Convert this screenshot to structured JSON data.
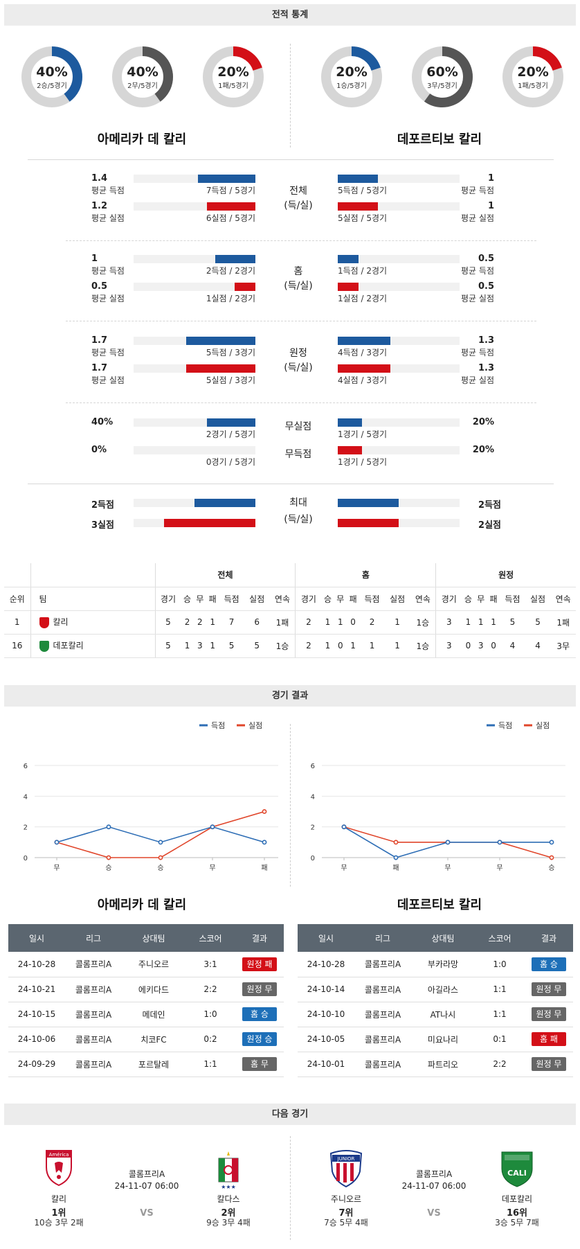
{
  "sections": {
    "stats_title": "전적 통계",
    "results_title": "경기 결과",
    "next_title": "다음 경기"
  },
  "donuts": [
    {
      "pct": "40%",
      "sub": "2승/5경기",
      "value": 0.4,
      "color": "#1d5a9e"
    },
    {
      "pct": "40%",
      "sub": "2무/5경기",
      "value": 0.4,
      "color": "#555555"
    },
    {
      "pct": "20%",
      "sub": "1패/5경기",
      "value": 0.2,
      "color": "#d30f17"
    },
    {
      "pct": "20%",
      "sub": "1승/5경기",
      "value": 0.2,
      "color": "#1d5a9e"
    },
    {
      "pct": "60%",
      "sub": "3무/5경기",
      "value": 0.6,
      "color": "#555555"
    },
    {
      "pct": "20%",
      "sub": "1패/5경기",
      "value": 0.2,
      "color": "#d30f17"
    }
  ],
  "teams": {
    "home": "아메리카 데 칼리",
    "away": "데포르티보 칼리"
  },
  "stat_groups": [
    {
      "label1": "전체",
      "label2": "(득/실)",
      "rows": [
        {
          "lv": "1.4",
          "ll": "평균 득점",
          "lsub": "7득점 / 5경기",
          "lfrac": 0.47,
          "rv": "1",
          "rl": "평균 득점",
          "rsub": "5득점 / 5경기",
          "rfrac": 0.33,
          "color": "blue"
        },
        {
          "lv": "1.2",
          "ll": "평균 실점",
          "lsub": "6실점 / 5경기",
          "lfrac": 0.4,
          "rv": "1",
          "rl": "평균 실점",
          "rsub": "5실점 / 5경기",
          "rfrac": 0.33,
          "color": "red"
        }
      ]
    },
    {
      "label1": "홈",
      "label2": "(득/실)",
      "rows": [
        {
          "lv": "1",
          "ll": "평균 득점",
          "lsub": "2득점 / 2경기",
          "lfrac": 0.33,
          "rv": "0.5",
          "rl": "평균 득점",
          "rsub": "1득점 / 2경기",
          "rfrac": 0.17,
          "color": "blue"
        },
        {
          "lv": "0.5",
          "ll": "평균 실점",
          "lsub": "1실점 / 2경기",
          "lfrac": 0.17,
          "rv": "0.5",
          "rl": "평균 실점",
          "rsub": "1실점 / 2경기",
          "rfrac": 0.17,
          "color": "red"
        }
      ]
    },
    {
      "label1": "원정",
      "label2": "(득/실)",
      "rows": [
        {
          "lv": "1.7",
          "ll": "평균 득점",
          "lsub": "5득점 / 3경기",
          "lfrac": 0.57,
          "rv": "1.3",
          "rl": "평균 득점",
          "rsub": "4득점 / 3경기",
          "rfrac": 0.43,
          "color": "blue"
        },
        {
          "lv": "1.7",
          "ll": "평균 실점",
          "lsub": "5실점 / 3경기",
          "lfrac": 0.57,
          "rv": "1.3",
          "rl": "평균 실점",
          "rsub": "4실점 / 3경기",
          "rfrac": 0.43,
          "color": "red"
        }
      ]
    }
  ],
  "clean": {
    "label_a": "무실점",
    "label_b": "무득점",
    "rows": [
      {
        "lv": "40%",
        "lsub": "2경기 / 5경기",
        "lfrac": 0.4,
        "rv": "20%",
        "rsub": "1경기 / 5경기",
        "rfrac": 0.2,
        "color": "blue"
      },
      {
        "lv": "0%",
        "lsub": "0경기 / 5경기",
        "lfrac": 0.0,
        "rv": "20%",
        "rsub": "1경기 / 5경기",
        "rfrac": 0.2,
        "color": "red"
      }
    ]
  },
  "max": {
    "label1": "최대",
    "label2": "(득/실)",
    "rows": [
      {
        "lv": "2득점",
        "lfrac": 0.5,
        "rv": "2득점",
        "rfrac": 0.5,
        "color": "blue"
      },
      {
        "lv": "3실점",
        "lfrac": 0.75,
        "rv": "2실점",
        "rfrac": 0.5,
        "color": "red"
      }
    ]
  },
  "standings": {
    "groups": [
      "전체",
      "홈",
      "원정"
    ],
    "rank_header": "순위",
    "team_header": "팀",
    "sub_headers": [
      "경기",
      "승",
      "무",
      "패",
      "득점",
      "실점",
      "연속"
    ],
    "rows": [
      {
        "rank": "1",
        "team": "칼리",
        "crest_color": "#d30f17",
        "total": [
          "5",
          "2",
          "2",
          "1",
          "7",
          "6",
          "1패"
        ],
        "home": [
          "2",
          "1",
          "1",
          "0",
          "2",
          "1",
          "1승"
        ],
        "away": [
          "3",
          "1",
          "1",
          "1",
          "5",
          "5",
          "1패"
        ]
      },
      {
        "rank": "16",
        "team": "데포칼리",
        "crest_color": "#1e8a3c",
        "total": [
          "5",
          "1",
          "3",
          "1",
          "5",
          "5",
          "1승"
        ],
        "home": [
          "2",
          "1",
          "0",
          "1",
          "1",
          "1",
          "1승"
        ],
        "away": [
          "3",
          "0",
          "3",
          "0",
          "4",
          "4",
          "3무"
        ]
      }
    ]
  },
  "charts": {
    "legend_scored": "득점",
    "legend_conceded": "실점",
    "scored_color": "#2d6db5",
    "conceded_color": "#e0452a",
    "yticks": [
      "0",
      "2",
      "4",
      "6"
    ],
    "home": {
      "x": [
        "무",
        "승",
        "승",
        "무",
        "패"
      ],
      "scored": [
        1,
        2,
        1,
        2,
        1
      ],
      "conceded": [
        1,
        0,
        0,
        2,
        3
      ]
    },
    "away": {
      "x": [
        "무",
        "패",
        "무",
        "무",
        "승"
      ],
      "scored": [
        2,
        0,
        1,
        1,
        1
      ],
      "conceded": [
        2,
        1,
        1,
        1,
        0
      ]
    }
  },
  "chart_data": [
    {
      "type": "line",
      "x": [
        "무",
        "승",
        "승",
        "무",
        "패"
      ],
      "ylim": [
        0,
        6
      ],
      "series": [
        {
          "name": "득점",
          "values": [
            1,
            2,
            1,
            2,
            1
          ]
        },
        {
          "name": "실점",
          "values": [
            1,
            0,
            0,
            2,
            3
          ]
        }
      ],
      "title": "아메리카 데 칼리",
      "legend": "top-right"
    },
    {
      "type": "line",
      "x": [
        "무",
        "패",
        "무",
        "무",
        "승"
      ],
      "ylim": [
        0,
        6
      ],
      "series": [
        {
          "name": "득점",
          "values": [
            2,
            0,
            1,
            1,
            1
          ]
        },
        {
          "name": "실점",
          "values": [
            2,
            1,
            1,
            1,
            0
          ]
        }
      ],
      "title": "데포르티보 칼리",
      "legend": "top-right"
    }
  ],
  "results": {
    "headers": [
      "일시",
      "리그",
      "상대팀",
      "스코어",
      "결과"
    ],
    "home": [
      {
        "date": "24-10-28",
        "league": "콜롬프리A",
        "opp": "주니오르",
        "score": "3:1",
        "result": "원정 패",
        "style": "b-red"
      },
      {
        "date": "24-10-21",
        "league": "콜롬프리A",
        "opp": "에키다드",
        "score": "2:2",
        "result": "원정 무",
        "style": "b-gray"
      },
      {
        "date": "24-10-15",
        "league": "콜롬프리A",
        "opp": "메데인",
        "score": "1:0",
        "result": "홈 승",
        "style": "b-blue"
      },
      {
        "date": "24-10-06",
        "league": "콜롬프리A",
        "opp": "치코FC",
        "score": "0:2",
        "result": "원정 승",
        "style": "b-blue"
      },
      {
        "date": "24-09-29",
        "league": "콜롬프리A",
        "opp": "포르탈레",
        "score": "1:1",
        "result": "홈 무",
        "style": "b-gray"
      }
    ],
    "away": [
      {
        "date": "24-10-28",
        "league": "콜롬프리A",
        "opp": "부카라망",
        "score": "1:0",
        "result": "홈 승",
        "style": "b-blue"
      },
      {
        "date": "24-10-14",
        "league": "콜롬프리A",
        "opp": "아길라스",
        "score": "1:1",
        "result": "원정 무",
        "style": "b-gray"
      },
      {
        "date": "24-10-10",
        "league": "콜롬프리A",
        "opp": "AT나시",
        "score": "1:1",
        "result": "원정 무",
        "style": "b-gray"
      },
      {
        "date": "24-10-05",
        "league": "콜롬프리A",
        "opp": "미요나리",
        "score": "0:1",
        "result": "홈 패",
        "style": "b-red"
      },
      {
        "date": "24-10-01",
        "league": "콜롬프리A",
        "opp": "파트리오",
        "score": "2:2",
        "result": "원정 무",
        "style": "b-gray"
      }
    ]
  },
  "next": {
    "left": {
      "team_a": {
        "name": "칼리",
        "rank": "1위",
        "rec": "10승 3무 2패",
        "logo_text": "América"
      },
      "team_b": {
        "name": "칼다스",
        "rank": "2위",
        "rec": "9승 3무 4패"
      },
      "league": "콜롬프리A",
      "datetime": "24-11-07 06:00",
      "vs": "VS"
    },
    "right": {
      "team_a": {
        "name": "주니오르",
        "rank": "7위",
        "rec": "7승 5무 4패",
        "logo_text": "JUNIOR"
      },
      "team_b": {
        "name": "데포칼리",
        "rank": "16위",
        "rec": "3승 5무 7패",
        "logo_text": "CALI"
      },
      "league": "콜롬프리A",
      "datetime": "24-11-07 06:00",
      "vs": "VS"
    }
  }
}
